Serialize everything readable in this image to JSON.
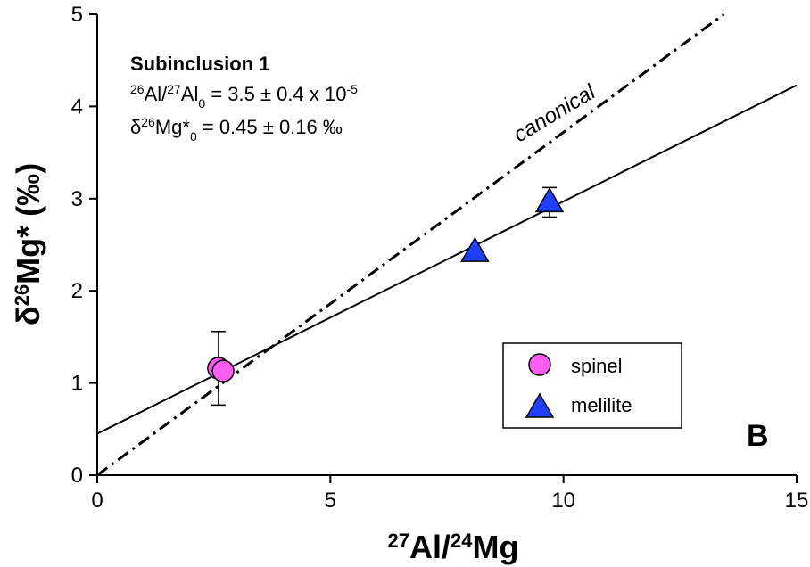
{
  "chart_data": {
    "type": "scatter",
    "title": "",
    "xlabel": {
      "sup": "27",
      "a": "Al/",
      "sup2": "24",
      "b": "Mg"
    },
    "ylabel": {
      "pre": "δ",
      "sup": "26",
      "post": "Mg* (‰)"
    },
    "xlim": [
      0,
      15
    ],
    "ylim": [
      0,
      5
    ],
    "xticks": [
      0,
      5,
      10,
      15
    ],
    "yticks": [
      0,
      1,
      2,
      3,
      4,
      5
    ],
    "xtick_labels": [
      "0",
      "5",
      "10",
      "15"
    ],
    "ytick_labels": [
      "0",
      "1",
      "2",
      "3",
      "4",
      "5"
    ],
    "grid": false,
    "legend_position": "lower-right",
    "series": [
      {
        "name": "spinel",
        "marker": "circle",
        "color": "#ff5cf0",
        "points": [
          {
            "x": 2.6,
            "y": 1.16,
            "yerr": 0.4
          },
          {
            "x": 2.7,
            "y": 1.13,
            "yerr": 0
          }
        ]
      },
      {
        "name": "melilite",
        "marker": "triangle",
        "color": "#1f3fff",
        "points": [
          {
            "x": 8.1,
            "y": 2.42,
            "yerr": 0
          },
          {
            "x": 9.7,
            "y": 2.96,
            "yerr": 0.16
          }
        ]
      }
    ],
    "lines": [
      {
        "kind": "fit",
        "style": "solid",
        "intercept": 0.45,
        "slope": 0.252
      },
      {
        "kind": "reference",
        "style": "dash-dot",
        "label": "canonical",
        "intercept": 0.0,
        "slope": 0.372
      }
    ],
    "annotation": {
      "title": "Subinclusion 1",
      "line1": {
        "s1": "26",
        "t1": "Al/",
        "s2": "27",
        "t2": "Al",
        "sub": "0",
        "t3": " = 3.5 ± 0.4 x 10",
        "exp": "-5"
      },
      "line2": {
        "t1": "δ",
        "s1": "26",
        "t2": "Mg*",
        "sub": "0",
        "t3": " =  0.45 ± 0.16 ‰"
      }
    },
    "panel_label": "B"
  }
}
